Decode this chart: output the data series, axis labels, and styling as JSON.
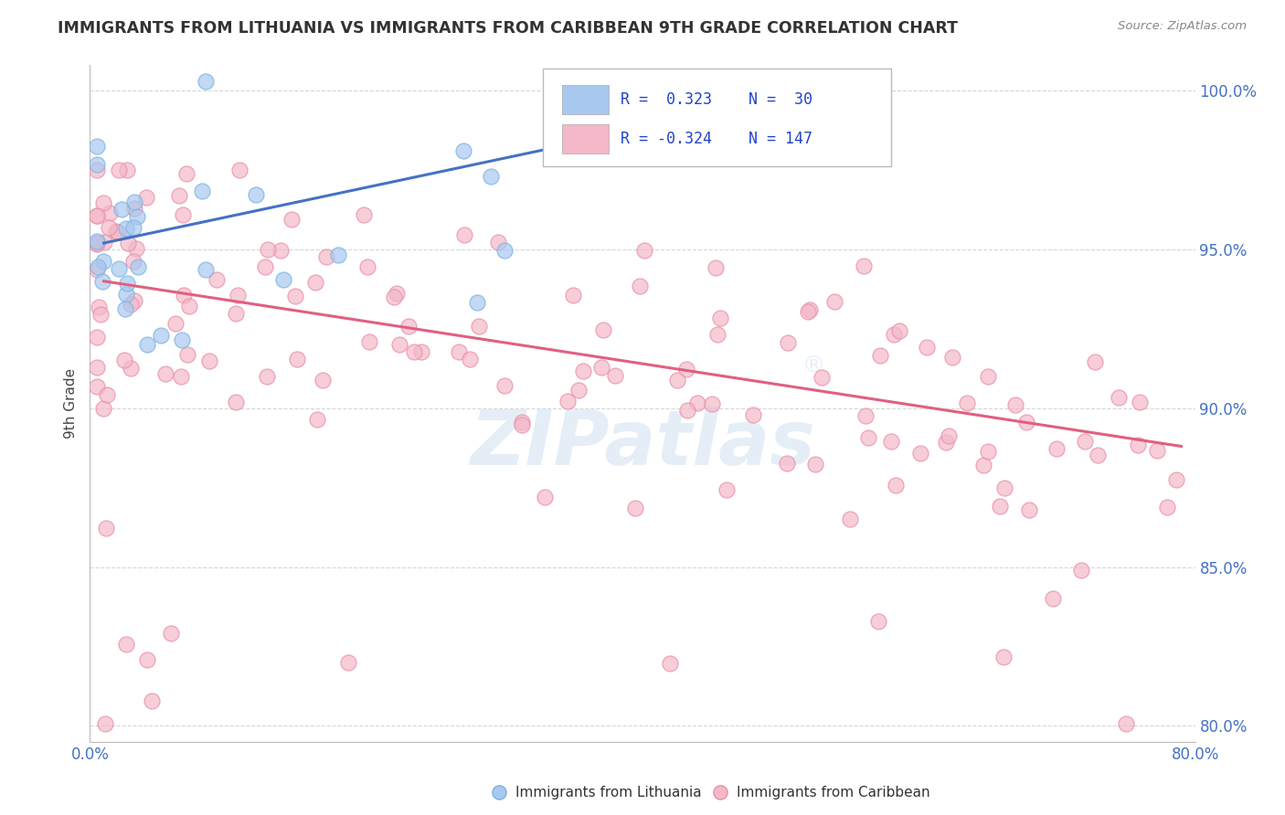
{
  "title": "IMMIGRANTS FROM LITHUANIA VS IMMIGRANTS FROM CARIBBEAN 9TH GRADE CORRELATION CHART",
  "source_text": "Source: ZipAtlas.com",
  "ylabel": "9th Grade",
  "x_min": 0.0,
  "x_max": 0.8,
  "y_min": 0.795,
  "y_max": 1.008,
  "y_ticks": [
    0.8,
    0.85,
    0.9,
    0.95,
    1.0
  ],
  "y_tick_labels": [
    "80.0%",
    "85.0%",
    "90.0%",
    "95.0%",
    "100.0%"
  ],
  "x_ticks": [
    0.0,
    0.2,
    0.4,
    0.6,
    0.8
  ],
  "x_tick_labels": [
    "0.0%",
    "",
    "",
    "",
    "80.0%"
  ],
  "watermark": "ZIPatlas®",
  "blue_line_x": [
    0.01,
    0.52
  ],
  "blue_line_y": [
    0.952,
    0.999
  ],
  "pink_line_x": [
    0.01,
    0.79
  ],
  "pink_line_y": [
    0.94,
    0.888
  ],
  "blue_color": "#a8c8f0",
  "blue_edge_color": "#7ab3e0",
  "blue_line_color": "#4472c4",
  "pink_color": "#f4b8c8",
  "pink_edge_color": "#e890a8",
  "pink_line_color": "#e06080",
  "title_color": "#333333",
  "source_color": "#888888",
  "tick_color": "#4472c4",
  "grid_color": "#cccccc",
  "background_color": "#ffffff",
  "legend_R_blue": "R =  0.323",
  "legend_N_blue": "N=  30",
  "legend_R_pink": "R = -0.324",
  "legend_N_pink": "N= 147"
}
